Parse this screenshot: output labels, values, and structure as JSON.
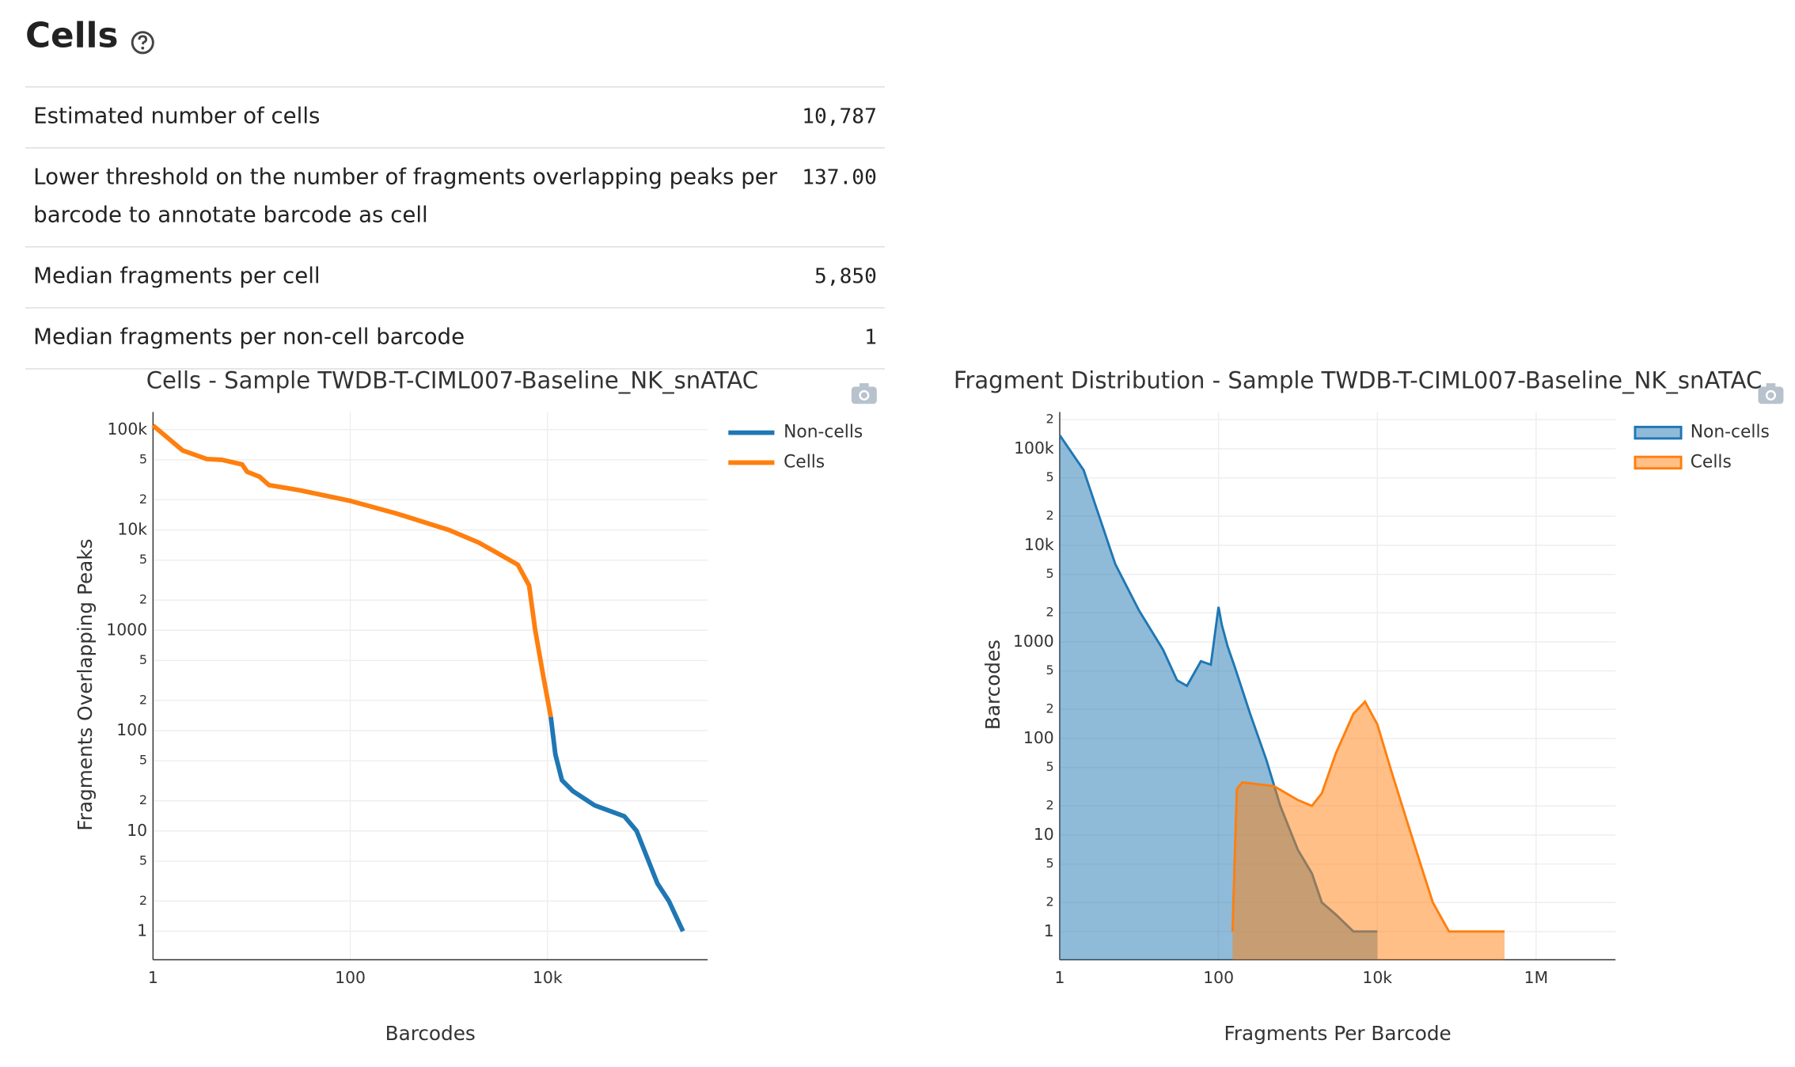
{
  "header": {
    "title": "Cells"
  },
  "table": {
    "rows": [
      [
        "Estimated number of cells",
        "10,787"
      ],
      [
        "Lower threshold on the number of fragments overlapping peaks per barcode to annotate barcode as cell",
        "137.00"
      ],
      [
        "Median fragments per cell",
        "5,850"
      ],
      [
        "Median fragments per non-cell barcode",
        "1"
      ]
    ]
  },
  "chart_data": [
    {
      "type": "line",
      "title": "Cells - Sample TWDB-T-CIML007-Baseline_NK_snATAC",
      "x_label": "Barcodes",
      "y_label": "Fragments Overlapping Peaks",
      "log_x": true,
      "log_y": true,
      "grid": true,
      "legend": "top-right",
      "xlim": [
        1,
        420000
      ],
      "ylim": [
        0.52,
        150000
      ],
      "xticks": [
        1,
        100,
        {
          "value": 10000,
          "label": "10k"
        }
      ],
      "yticks": [
        1,
        2,
        5,
        10,
        {
          "value": 20,
          "label": "2"
        },
        {
          "value": 50,
          "label": "5"
        },
        100,
        {
          "value": 200,
          "label": "2"
        },
        {
          "value": 500,
          "label": "5"
        },
        1000,
        {
          "value": 2000,
          "label": "2"
        },
        {
          "value": 5000,
          "label": "5"
        },
        {
          "value": 10000,
          "label": "10k"
        },
        {
          "value": 20000,
          "label": "2"
        },
        {
          "value": 50000,
          "label": "5"
        },
        {
          "value": 100000,
          "label": "100k"
        }
      ],
      "series": [
        {
          "name": "Non-cells",
          "color": "#1f77b4",
          "x": [
            10787,
            12000,
            14000,
            18000,
            30000,
            60000,
            80000,
            130000,
            170000,
            236000
          ],
          "values": [
            137,
            58,
            32,
            25,
            18,
            14,
            10,
            3,
            2,
            1
          ]
        },
        {
          "name": "Cells",
          "color": "#ff7f0e",
          "x": [
            1,
            2,
            3.5,
            5,
            8,
            9,
            12,
            15,
            30,
            100,
            300,
            1000,
            2000,
            3000,
            5000,
            6500,
            7500,
            9000,
            10787
          ],
          "values": [
            110000,
            62000,
            51000,
            50000,
            45000,
            38000,
            34000,
            28000,
            25000,
            19500,
            14500,
            10000,
            7500,
            6000,
            4500,
            2800,
            1000,
            360,
            137
          ]
        }
      ]
    },
    {
      "type": "area",
      "title": "Fragment Distribution - Sample TWDB-T-CIML007-Baseline_NK_snATAC",
      "x_label": "Fragments Per Barcode",
      "y_label": "Barcodes",
      "log_x": true,
      "log_y": true,
      "grid": true,
      "legend": "top-right",
      "xlim": [
        1,
        10000000
      ],
      "ylim": [
        0.51,
        240000
      ],
      "xticks": [
        1,
        100,
        {
          "value": 10000,
          "label": "10k"
        },
        {
          "value": 1000000,
          "label": "1M"
        }
      ],
      "yticks": [
        1,
        2,
        5,
        10,
        {
          "value": 20,
          "label": "2"
        },
        {
          "value": 50,
          "label": "5"
        },
        100,
        {
          "value": 200,
          "label": "2"
        },
        {
          "value": 500,
          "label": "5"
        },
        1000,
        {
          "value": 2000,
          "label": "2"
        },
        {
          "value": 5000,
          "label": "5"
        },
        {
          "value": 10000,
          "label": "10k"
        },
        {
          "value": 20000,
          "label": "2"
        },
        {
          "value": 50000,
          "label": "5"
        },
        {
          "value": 100000,
          "label": "100k"
        },
        {
          "value": 200000,
          "label": "2"
        }
      ],
      "series": [
        {
          "name": "Non-cells",
          "color": "#1f77b4",
          "x": [
            1,
            2,
            5,
            10,
            20,
            30,
            40,
            60,
            80,
            100,
            110,
            130,
            160,
            250,
            400,
            600,
            1000,
            1500,
            2000,
            3000,
            5000,
            10000
          ],
          "values": [
            138000,
            60000,
            6400,
            2100,
            830,
            400,
            350,
            630,
            580,
            2300,
            1500,
            900,
            550,
            180,
            60,
            20,
            7,
            4,
            2,
            1.5,
            1,
            1
          ]
        },
        {
          "name": "Cells",
          "color": "#ff7f0e",
          "x": [
            150,
            170,
            200,
            500,
            1000,
            1500,
            2000,
            3000,
            5000,
            7000,
            10000,
            15000,
            25000,
            35000,
            50000,
            80000,
            400000
          ],
          "values": [
            1,
            30,
            35,
            32,
            23,
            20,
            27,
            70,
            180,
            240,
            140,
            46,
            12,
            5,
            2,
            1,
            1
          ]
        }
      ]
    }
  ]
}
